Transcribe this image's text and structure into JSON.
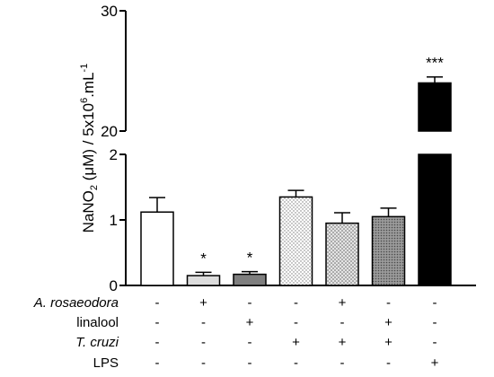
{
  "chart_data": {
    "type": "bar",
    "ylabel": {
      "main": "NaNO",
      "sub": "2",
      "mid": " (μM) / 5x10",
      "sup1": "6",
      "tail": ".mL",
      "sup2": "-1"
    },
    "axis": {
      "segments": [
        {
          "range": [
            0,
            2
          ],
          "ticks": [
            0,
            1,
            2
          ],
          "tick_labels": [
            "0",
            "1",
            "2"
          ]
        },
        {
          "range": [
            20,
            30
          ],
          "ticks": [
            20,
            30
          ],
          "tick_labels": [
            "20",
            "30"
          ]
        }
      ],
      "grid": false
    },
    "bars": [
      {
        "value": 1.12,
        "error": 0.22,
        "sig": "",
        "fill": "white"
      },
      {
        "value": 0.15,
        "error": 0.05,
        "sig": "*",
        "fill": "light-gray"
      },
      {
        "value": 0.17,
        "error": 0.04,
        "sig": "*",
        "fill": "dark-gray"
      },
      {
        "value": 1.35,
        "error": 0.1,
        "sig": "",
        "fill": "fine-dots"
      },
      {
        "value": 0.95,
        "error": 0.16,
        "sig": "",
        "fill": "medium-dots"
      },
      {
        "value": 1.05,
        "error": 0.13,
        "sig": "",
        "fill": "dense-dots"
      },
      {
        "value": 24.0,
        "error": 0.5,
        "sig": "***",
        "fill": "black"
      }
    ],
    "treatment_rows": [
      {
        "label": "A. rosaeodora",
        "italic": true,
        "signs": [
          "-",
          "+",
          "-",
          "-",
          "+",
          "-",
          "-"
        ]
      },
      {
        "label": "linalool",
        "italic": false,
        "signs": [
          "-",
          "-",
          "+",
          "-",
          "-",
          "+",
          "-"
        ]
      },
      {
        "label": "T. cruzi",
        "italic": true,
        "signs": [
          "-",
          "-",
          "-",
          "+",
          "+",
          "+",
          "-"
        ]
      },
      {
        "label": "LPS",
        "italic": false,
        "signs": [
          "-",
          "-",
          "-",
          "-",
          "-",
          "-",
          "+"
        ]
      }
    ]
  }
}
